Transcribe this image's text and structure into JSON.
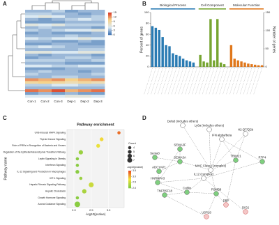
{
  "panels": [
    "A",
    "B",
    "C",
    "D"
  ],
  "chart_data": [
    {
      "type": "heatmap",
      "columns": [
        "Con-1",
        "Con-2",
        "Con-3",
        "Dep-1",
        "Dep-2",
        "Dep-3"
      ],
      "clim": [
        0,
        15
      ],
      "cticks": [
        0,
        3,
        6,
        9,
        12,
        15
      ],
      "colormap": [
        "#3a6fb0",
        "#dbe9f2",
        "#f7d38a",
        "#d7301f"
      ],
      "rows": [
        [
          3,
          3,
          4,
          2,
          3,
          3
        ],
        [
          4,
          4,
          3,
          3,
          2,
          3
        ],
        [
          5,
          6,
          5,
          3,
          3,
          4
        ],
        [
          3,
          2,
          3,
          4,
          5,
          4
        ],
        [
          2,
          2,
          2,
          3,
          3,
          3
        ],
        [
          6,
          5,
          6,
          4,
          4,
          4
        ],
        [
          3,
          4,
          3,
          3,
          3,
          2
        ],
        [
          4,
          3,
          4,
          5,
          5,
          6
        ],
        [
          2,
          3,
          2,
          2,
          2,
          3
        ],
        [
          3,
          3,
          3,
          4,
          3,
          3
        ],
        [
          5,
          4,
          5,
          5,
          6,
          5
        ],
        [
          3,
          3,
          2,
          2,
          3,
          2
        ],
        [
          2,
          2,
          3,
          3,
          2,
          2
        ],
        [
          4,
          5,
          4,
          3,
          3,
          3
        ],
        [
          3,
          3,
          3,
          3,
          4,
          4
        ],
        [
          6,
          6,
          5,
          5,
          6,
          6
        ],
        [
          3,
          2,
          3,
          3,
          3,
          2
        ],
        [
          2,
          3,
          3,
          4,
          4,
          3
        ],
        [
          4,
          4,
          4,
          3,
          3,
          4
        ],
        [
          3,
          3,
          3,
          2,
          2,
          2
        ],
        [
          5,
          5,
          4,
          4,
          5,
          5
        ],
        [
          2,
          2,
          2,
          3,
          3,
          3
        ],
        [
          3,
          4,
          3,
          3,
          2,
          3
        ],
        [
          4,
          3,
          3,
          3,
          3,
          4
        ],
        [
          3,
          3,
          4,
          4,
          3,
          3
        ],
        [
          12,
          11,
          12,
          10,
          11,
          12
        ],
        [
          9,
          10,
          9,
          8,
          9,
          8
        ],
        [
          4,
          4,
          5,
          5,
          4,
          4
        ],
        [
          3,
          3,
          3,
          3,
          3,
          3
        ],
        [
          13,
          12,
          14,
          11,
          12,
          13
        ],
        [
          2,
          3,
          2,
          3,
          2,
          2
        ],
        [
          5,
          5,
          5,
          6,
          6,
          5
        ]
      ]
    },
    {
      "type": "bar",
      "group_titles": true,
      "y_label": "Percent of genes",
      "y2_label": "Number of genes",
      "ylim": [
        0,
        100
      ],
      "yticks": [
        0,
        20,
        40,
        60,
        80,
        100
      ],
      "y2lim": [
        0,
        150
      ],
      "y2ticks": [
        0,
        50,
        100,
        150
      ],
      "series": [
        {
          "name": "Biological Process",
          "color": "#2a7bb3",
          "values": [
            75,
            72,
            68,
            55,
            40,
            38,
            25,
            22,
            20,
            15,
            12,
            10,
            8
          ]
        },
        {
          "name": "Cell Component",
          "color": "#77a531",
          "values": [
            22,
            10,
            8,
            88,
            12,
            88,
            8,
            5
          ]
        },
        {
          "name": "Molecular Function",
          "color": "#e0771b",
          "values": [
            40,
            15,
            12,
            10,
            8,
            6,
            5,
            4,
            3,
            3
          ]
        }
      ]
    },
    {
      "type": "bubble",
      "title": "Pathway enrichment",
      "x_label": "-log10(pvalue)",
      "y_label": "Pathway name",
      "categories": [
        "UVB-Induced MAPK Signaling",
        "Thyroid Cancer Signaling",
        "Role of PRRs in Recognition of Bacteria and Viruses",
        "Regulation of the Epithelial-Mesenchymal Transition Pathway",
        "Leptin Signaling in Obesity",
        "Interferon Signaling",
        "IL-12 Signaling and Production in Macrophages",
        "IGF-1 Signaling",
        "Hepatic Fibrosis Signaling Pathway",
        "Hepatic Cholestasis",
        "Growth Hormone Signaling",
        "Axonal Guidance Signaling"
      ],
      "x": [
        3.3,
        2.8,
        2.7,
        2.2,
        2.1,
        2.1,
        2.1,
        2.2,
        2.5,
        2.3,
        2.1,
        2.1
      ],
      "sizes": [
        4,
        5,
        5,
        6,
        4,
        4,
        5,
        4,
        7,
        6,
        4,
        8
      ],
      "xlim": [
        1.8,
        3.45
      ],
      "xticks": [
        {
          "value": 2,
          "label": "2.0"
        },
        2.5,
        {
          "value": 3,
          "label": "3.0"
        }
      ],
      "size_title": "Count",
      "size_ticks": [
        4,
        5,
        6,
        7
      ],
      "color_title": "-log10(pvalue)",
      "clim": [
        2,
        3.5
      ],
      "cticks": [
        {
          "value": 3.5,
          "label": "3.5"
        },
        {
          "value": 3,
          "label": "3.0"
        },
        {
          "value": 2.5,
          "label": "2.5"
        },
        {
          "value": 2,
          "label": "2.0"
        }
      ],
      "colormap": [
        "#7ac943",
        "#f2e33a",
        "#e8441f"
      ]
    }
  ],
  "network": {
    "nodes": [
      "Defa3 (includes others)",
      "Ly6a (includes others)",
      "H2-Q7/Q2b",
      "IFN alpha/beta",
      "SEMA3F",
      "Sema3",
      "SEMA3A",
      "TRIM21",
      "RTP4",
      "MHC Class I (complex)",
      "IL12 (complex)",
      "ADCYAP1",
      "HNRNPA3",
      "Cofilin",
      "TNFRSF18",
      "PSMB8",
      "USP18",
      "DBP",
      "DIO2"
    ]
  }
}
